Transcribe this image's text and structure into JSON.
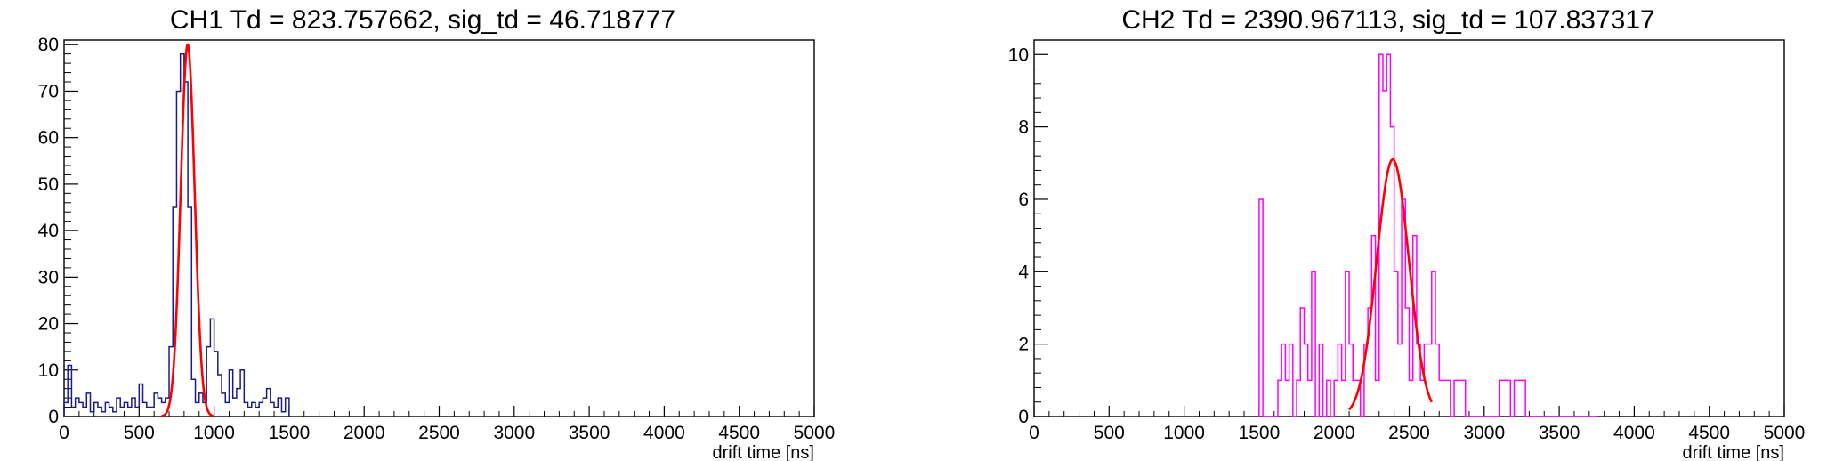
{
  "chart_data": [
    {
      "type": "line",
      "title": "CH1 Td = 823.757662, sig_td = 46.718777",
      "xlabel": "drift time [ns]",
      "ylabel": "",
      "xlim": [
        0,
        5000
      ],
      "ylim": [
        0,
        81
      ],
      "x_ticks": [
        0,
        500,
        1000,
        1500,
        2000,
        2500,
        3000,
        3500,
        4000,
        4500,
        5000
      ],
      "y_ticks": [
        0,
        10,
        20,
        30,
        40,
        50,
        60,
        70,
        80
      ],
      "grid": false,
      "colors": {
        "histogram": "#1a1a8c",
        "fit": "#ff0000"
      },
      "series": [
        {
          "kind": "histogram",
          "bin_start": 0,
          "bin_width": 25,
          "values": [
            3,
            11,
            2,
            4,
            3,
            2,
            5,
            1,
            3,
            2,
            1,
            3,
            2,
            1,
            4,
            2,
            3,
            2,
            4,
            2,
            7,
            3,
            2,
            2,
            5,
            4,
            3,
            4,
            15,
            45,
            70,
            78,
            72,
            45,
            8,
            3,
            5,
            3,
            15,
            21,
            14,
            9,
            5,
            3,
            10,
            4,
            6,
            10,
            3,
            2,
            3,
            2,
            3,
            4,
            6,
            3,
            2,
            4,
            1,
            4
          ]
        },
        {
          "kind": "gaussian_fit",
          "amplitude": 80,
          "mean": 823.757662,
          "sigma": 46.718777,
          "range": [
            650,
            1000
          ]
        }
      ]
    },
    {
      "type": "line",
      "title": "CH2 Td = 2390.967113, sig_td = 107.837317",
      "xlabel": "drift time [ns]",
      "ylabel": "",
      "xlim": [
        0,
        5000
      ],
      "ylim": [
        0,
        10.4
      ],
      "x_ticks": [
        0,
        500,
        1000,
        1500,
        2000,
        2500,
        3000,
        3500,
        4000,
        4500,
        5000
      ],
      "y_ticks": [
        0,
        2,
        4,
        6,
        8,
        10
      ],
      "grid": false,
      "colors": {
        "histogram": "#ff00ff",
        "fit": "#ff0000"
      },
      "series": [
        {
          "kind": "histogram",
          "bin_start": 1500,
          "bin_width": 25,
          "values": [
            6,
            0,
            0,
            0,
            0,
            1,
            2,
            1,
            2,
            0,
            1,
            3,
            2,
            1,
            4,
            0,
            2,
            0,
            1,
            0,
            1,
            2,
            1,
            4,
            2,
            1,
            1,
            0,
            2,
            3,
            5,
            1,
            10,
            9,
            10,
            8,
            4,
            2,
            6,
            3,
            1,
            5,
            2,
            1,
            2,
            2,
            4,
            2,
            1,
            1,
            1,
            0,
            1,
            1,
            1,
            0,
            0,
            0,
            0,
            0,
            0,
            0,
            0,
            0,
            1,
            1,
            1,
            0,
            1,
            1,
            1,
            0,
            0,
            0,
            0,
            0,
            0,
            0,
            0,
            0,
            0,
            0,
            0,
            0,
            0,
            0,
            0,
            0,
            0,
            0
          ]
        },
        {
          "kind": "gaussian_fit",
          "amplitude": 7.1,
          "mean": 2390.967113,
          "sigma": 107.837317,
          "range": [
            2100,
            2650
          ]
        }
      ]
    }
  ]
}
